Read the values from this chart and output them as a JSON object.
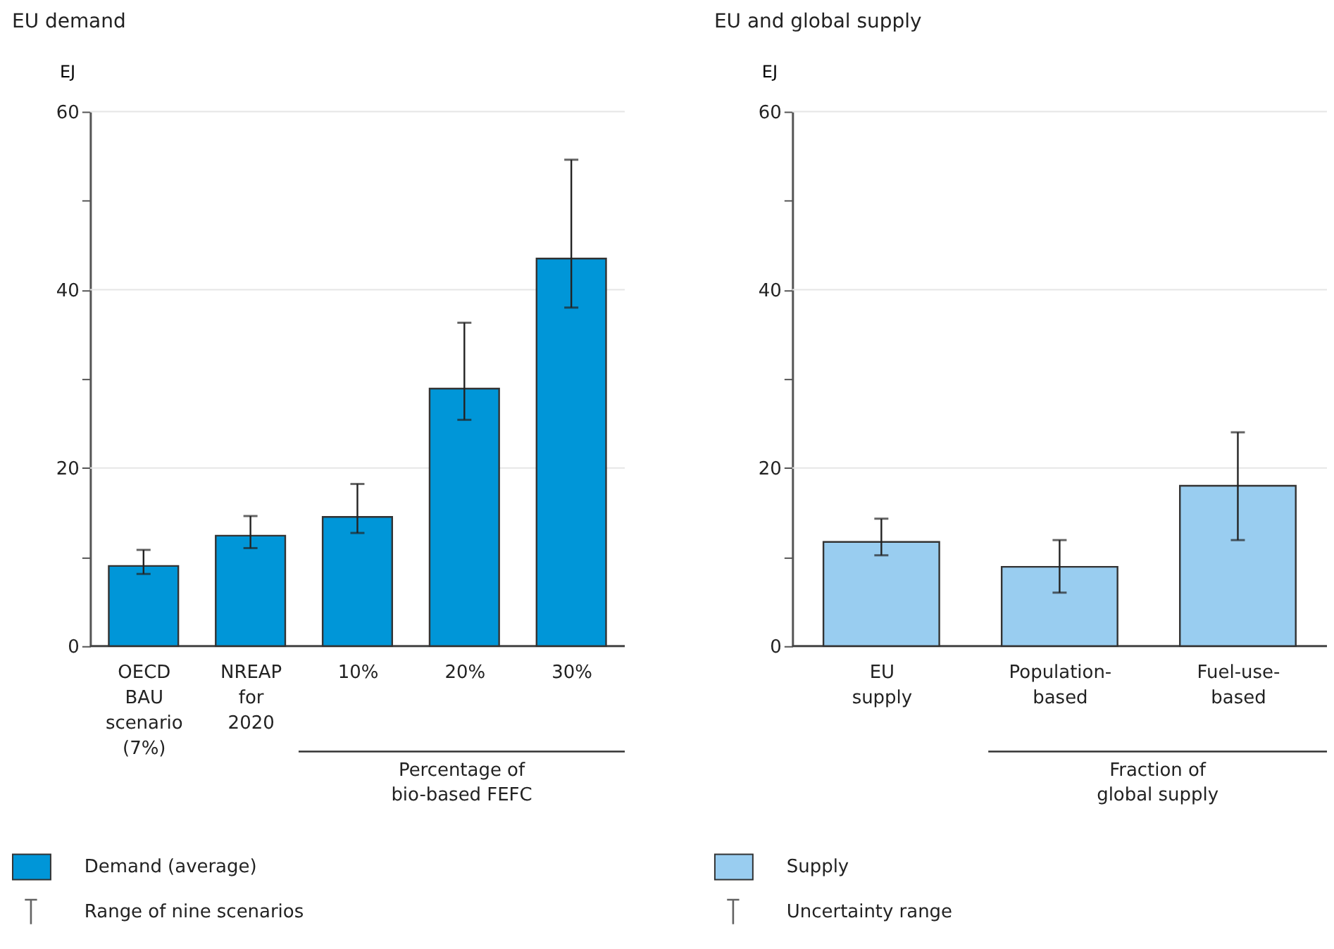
{
  "chart_data": [
    {
      "type": "bar",
      "title": "EU demand",
      "ylabel": "EJ",
      "categories": [
        "OECD BAU scenario (7%)",
        "NREAP for 2020",
        "10%",
        "20%",
        "30%"
      ],
      "series": [
        {
          "name": "Demand (average)",
          "color": "#0096d8",
          "values": [
            9.0,
            12.4,
            14.5,
            28.9,
            43.5
          ],
          "errors": [
            [
              8.1,
              10.8
            ],
            [
              11.0,
              14.6
            ],
            [
              12.7,
              18.2
            ],
            [
              25.4,
              36.3
            ],
            [
              38.0,
              54.6
            ]
          ]
        }
      ],
      "ylim": [
        0,
        60
      ],
      "yticks": [
        0,
        {
          "value": 10,
          "label": null
        },
        20,
        {
          "value": 30,
          "label": null
        },
        40,
        {
          "value": 50,
          "label": null
        },
        60
      ],
      "grid": "y",
      "legend": "bottom",
      "annotations": [
        "Percentage of bio-based FEFC",
        "Range of nine scenarios"
      ]
    },
    {
      "type": "bar",
      "title": "EU and global supply",
      "ylabel": "EJ",
      "categories": [
        "EU supply",
        "Population-based",
        "Fuel-use-based"
      ],
      "series": [
        {
          "name": "Supply",
          "color": "#99cdf0",
          "values": [
            11.7,
            8.9,
            18.0
          ],
          "errors": [
            [
              10.2,
              14.3
            ],
            [
              6.0,
              11.9
            ],
            [
              11.9,
              24.0
            ]
          ]
        }
      ],
      "ylim": [
        0,
        60
      ],
      "yticks": [
        0,
        {
          "value": 10,
          "label": null
        },
        20,
        {
          "value": 30,
          "label": null
        },
        40,
        {
          "value": 50,
          "label": null
        },
        60
      ],
      "grid": "y",
      "legend": "bottom",
      "annotations": [
        "Fraction of global supply",
        "Uncertainty range"
      ]
    }
  ]
}
